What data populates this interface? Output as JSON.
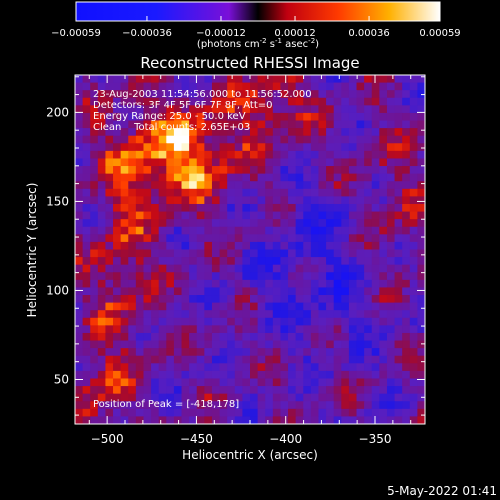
{
  "chart_data": {
    "type": "heatmap",
    "title": "Reconstructed RHESSI Image",
    "xlabel": "Heliocentric X (arcsec)",
    "ylabel": "Heliocentric Y (arcsec)",
    "xlim": [
      -518,
      -322
    ],
    "ylim": [
      25,
      221
    ],
    "x_ticks": [
      -500,
      -450,
      -400,
      -350
    ],
    "y_ticks": [
      50,
      100,
      150,
      200
    ],
    "colorbar": {
      "range": [
        -0.00059,
        0.00059
      ],
      "ticks": [
        -0.00059,
        -0.00036,
        -0.00012,
        0.00012,
        0.00036,
        0.00059
      ],
      "tick_labels": [
        "-0.00059",
        "-0.00036",
        "-0.00012",
        "0.00012",
        "0.00036",
        "0.00059"
      ],
      "unit_parts": [
        "(photons cm",
        "-2",
        " s",
        "-1",
        " asec",
        "-2",
        ")"
      ]
    },
    "annotations": [
      "23-Aug-2003 11:54:56.000 to 11:56:52.000",
      "Detectors: 3F 4F 5F 6F 7F 8F, Att=0",
      "Energy Range: 25.0 - 50.0 keV",
      "Clean    Total counts: 2.65E+03"
    ],
    "peak_label": "Position of Peak = [-418,178]",
    "peak": [
      -418,
      178
    ],
    "footer_date": "5-May-2022 01:41"
  }
}
